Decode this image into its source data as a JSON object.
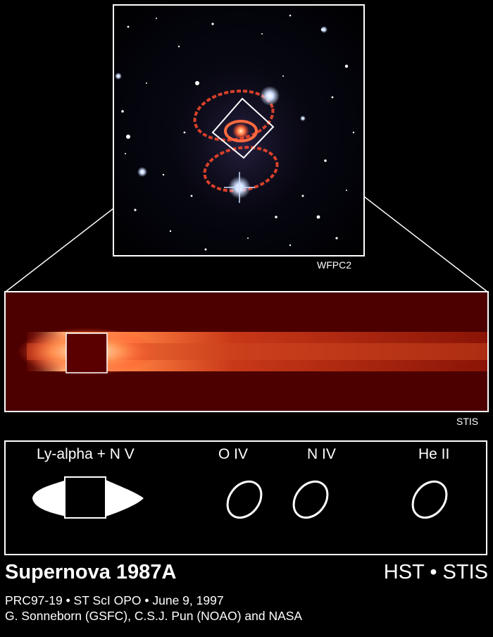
{
  "wfpc2": {
    "label": "WFPC2"
  },
  "stis": {
    "label": "STIS"
  },
  "diagram": {
    "lines": [
      {
        "name": "lyalpha-nv",
        "label": "Ly-alpha + N V"
      },
      {
        "name": "o-iv",
        "label": "O IV"
      },
      {
        "name": "n-iv",
        "label": "N IV"
      },
      {
        "name": "he-ii",
        "label": "He II"
      }
    ]
  },
  "footer": {
    "title": "Supernova 1987A",
    "instrument": "HST • STIS",
    "credit_line1": "PRC97-19 • ST ScI OPO • June 9, 1997",
    "credit_line2": "G. Sonneborn (GSFC), C.S.J. Pun (NOAO) and NASA"
  },
  "colors": {
    "background": "#000000",
    "ring": "#e8452a",
    "spectrum_bg": "#5a0000",
    "spectrum_glow": "#ffb070",
    "outline": "#ffffff"
  }
}
